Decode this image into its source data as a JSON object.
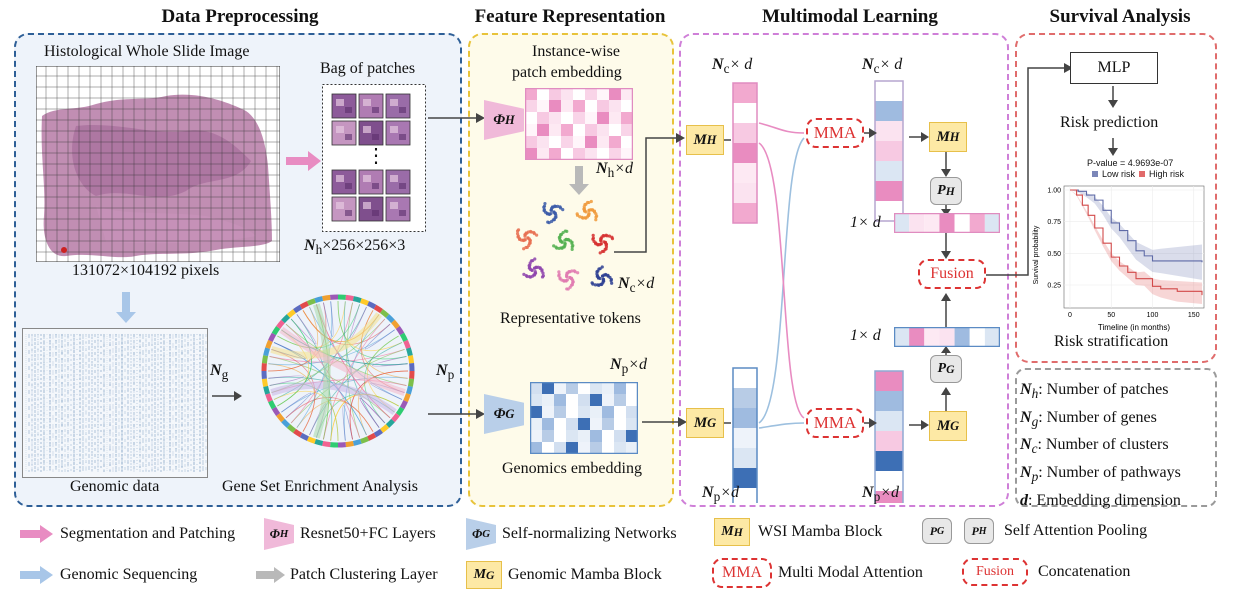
{
  "sections": {
    "data_preprocessing": "Data Preprocessing",
    "feature_representation": "Feature Representation",
    "multimodal_learning": "Multimodal Learning",
    "survival_analysis": "Survival Analysis"
  },
  "preprocessing": {
    "wsi_title": "Histological Whole Slide Image",
    "wsi_pixels": "131072×104192 pixels",
    "bag_title": "Bag of patches",
    "bag_dims": "×256×256×3",
    "genomic_data": "Genomic data",
    "gsea": "Gene Set Enrichment Analysis",
    "ng": "N",
    "ng_sub": "g",
    "np": "N",
    "np_sub": "p",
    "nh": "N",
    "nh_sub": "h",
    "ellipsis": "⋮"
  },
  "representation": {
    "instance_title_1": "Instance-wise",
    "instance_title_2": "patch embedding",
    "nh_d": "×d",
    "rep_tokens": "Representative tokens",
    "nc_d": "×d",
    "np_d": "×d",
    "genomics_embedding": "Genomics embedding",
    "phi_h": "Φ",
    "phi_h_sub": "H",
    "phi_g": "Φ",
    "phi_g_sub": "G"
  },
  "multimodal": {
    "nc_x_d": "× d",
    "np_x_d": "×d",
    "one_x_d": "1× d",
    "mma": "MMA",
    "fusion": "Fusion",
    "m_h": "M",
    "m_h_sub": "H",
    "m_g": "M",
    "m_g_sub": "G",
    "p_h": "P",
    "p_h_sub": "H",
    "p_g": "P",
    "p_g_sub": "G",
    "n": "N",
    "c_sub": "c",
    "p_sub": "p"
  },
  "survival": {
    "mlp": "MLP",
    "risk_prediction": "Risk prediction",
    "risk_stratification": "Risk stratification",
    "pvalue": "P-value = 4.9693e-07",
    "low_risk": "Low risk",
    "high_risk": "High risk",
    "ylabel": "Survival probability",
    "xlabel": "Timeline (in months)",
    "yticks": [
      "1.00",
      "0.75",
      "0.50",
      "0.25"
    ],
    "xticks": [
      "0",
      "50",
      "100",
      "150"
    ]
  },
  "definitions": [
    {
      "sym": "N",
      "sub": "h",
      "text": ": Number of patches"
    },
    {
      "sym": "N",
      "sub": "g",
      "text": ": Number of genes"
    },
    {
      "sym": "N",
      "sub": "c",
      "text": ": Number of clusters"
    },
    {
      "sym": "N",
      "sub": "p",
      "text": ": Number of pathways"
    },
    {
      "sym": "d",
      "sub": "",
      "text": ": Embedding dimension"
    }
  ],
  "legend": {
    "segmentation": "Segmentation and Patching",
    "resnet": "Resnet50+FC Layers",
    "snn": "Self-normalizing Networks",
    "wsi_mamba": "WSI Mamba Block",
    "sap": "Self Attention Pooling",
    "genomic_seq": "Genomic Sequencing",
    "patch_cluster": "Patch Clustering Layer",
    "genomic_mamba": "Genomic Mamba Block",
    "mma_full": "Multi Modal Attention",
    "concat": "Concatenation",
    "mma": "MMA",
    "fusion": "Fusion"
  },
  "colors": {
    "preprocessing_border": "#2e5f97",
    "representation_border": "#e8c33a",
    "multimodal_border": "#cf7fd8",
    "survival_border": "#e06c6c",
    "defs_border": "#9a9a9a",
    "pink": "#e88cc2",
    "blue": "#5b8bc4",
    "low_risk": "#7b86b8",
    "high_risk": "#e16a6a"
  }
}
